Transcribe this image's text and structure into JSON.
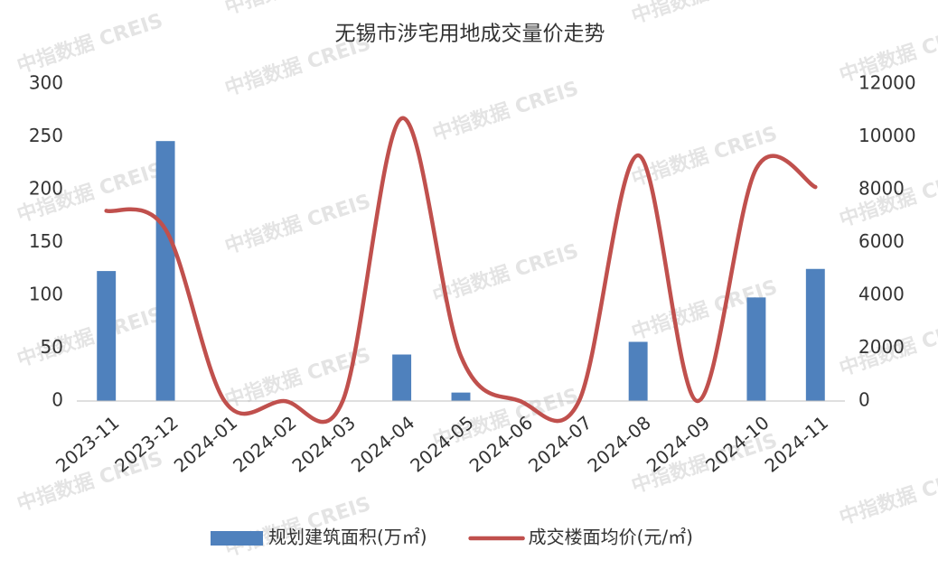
{
  "chart_data": {
    "type": "bar_line",
    "title": "无锡市涉宅用地成交量价走势",
    "watermark": "中指数据 CREIS",
    "categories": [
      "2023-11",
      "2023-12",
      "2024-01",
      "2024-02",
      "2024-03",
      "2024-04",
      "2024-05",
      "2024-06",
      "2024-07",
      "2024-08",
      "2024-09",
      "2024-10",
      "2024-11"
    ],
    "series": [
      {
        "name": "规划建筑面积(万㎡)",
        "type": "bar",
        "color": "#4f81bd",
        "axis": "y",
        "values": [
          123,
          246,
          0,
          0,
          0,
          44,
          8,
          0,
          0,
          56,
          0,
          98,
          125
        ]
      },
      {
        "name": "成交楼面均价(元/㎡)",
        "type": "line",
        "color": "#c0504d",
        "axis": "y2",
        "smooth": true,
        "values": [
          7200,
          6500,
          0,
          0,
          0,
          10700,
          1700,
          0,
          0,
          9300,
          0,
          8800,
          8100
        ]
      }
    ],
    "ylim": [
      0,
      300
    ],
    "yticks": [
      0,
      50,
      100,
      150,
      200,
      250,
      300
    ],
    "y2lim": [
      0,
      12000
    ],
    "y2ticks": [
      0,
      2000,
      4000,
      6000,
      8000,
      10000,
      12000
    ],
    "grid": false,
    "legend": "bottom"
  }
}
